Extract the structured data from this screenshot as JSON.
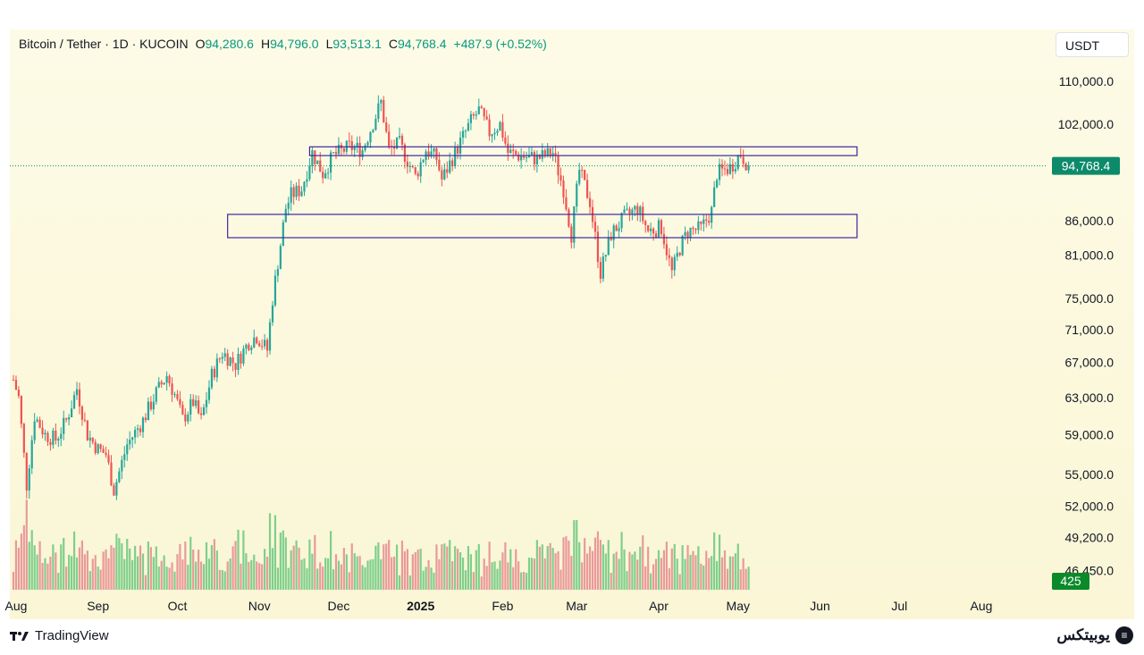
{
  "legend": {
    "symbol": "Bitcoin / Tether · 1D · KUCOIN",
    "o_label": "O",
    "o_value": "94,280.6",
    "h_label": "H",
    "h_value": "94,796.0",
    "l_label": "L",
    "l_value": "93,513.1",
    "c_label": "C",
    "c_value": "94,768.4",
    "change": "+487.9 (+0.52%)"
  },
  "currency_button": "USDT",
  "footer": {
    "tradingview": "TradingView",
    "brand": "یوبیتکس"
  },
  "colors": {
    "up": "#26a69a",
    "down": "#ef5350",
    "volume_up": "#7fcf8b",
    "volume_down": "#e99a9a",
    "zone": "#3c2a9e",
    "price_badge": "#0c8a6a",
    "volume_badge": "#0b8a2a"
  },
  "icons": [
    "tradingview-logo-icon",
    "brand-logo-icon"
  ],
  "chart_data": {
    "type": "candlestick",
    "scale": "log",
    "y_ticks": [
      {
        "value": 110000,
        "label": "110,000.0"
      },
      {
        "value": 102000,
        "label": "102,000.0"
      },
      {
        "value": 86000,
        "label": "86,000.0"
      },
      {
        "value": 81000,
        "label": "81,000.0"
      },
      {
        "value": 75000,
        "label": "75,000.0"
      },
      {
        "value": 71000,
        "label": "71,000.0"
      },
      {
        "value": 67000,
        "label": "67,000.0"
      },
      {
        "value": 63000,
        "label": "63,000.0"
      },
      {
        "value": 59000,
        "label": "59,000.0"
      },
      {
        "value": 55000,
        "label": "55,000.0"
      },
      {
        "value": 52000,
        "label": "52,000.0"
      },
      {
        "value": 49200,
        "label": "49,200.0"
      },
      {
        "value": 46450,
        "label": "46,450.0"
      }
    ],
    "x_ticks": [
      {
        "label": "Aug",
        "bold": false
      },
      {
        "label": "Sep",
        "bold": false
      },
      {
        "label": "Oct",
        "bold": false
      },
      {
        "label": "Nov",
        "bold": false
      },
      {
        "label": "Dec",
        "bold": false
      },
      {
        "label": "2025",
        "bold": true
      },
      {
        "label": "Feb",
        "bold": false
      },
      {
        "label": "Mar",
        "bold": false
      },
      {
        "label": "Apr",
        "bold": false
      },
      {
        "label": "May",
        "bold": false
      },
      {
        "label": "Jun",
        "bold": false
      },
      {
        "label": "Jul",
        "bold": false
      },
      {
        "label": "Aug",
        "bold": false
      }
    ],
    "last_price": {
      "value": 94768.4,
      "label": "94,768.4"
    },
    "volume_badge": "425",
    "zones": [
      {
        "name": "resistance-zone",
        "low": 96500,
        "high": 98000,
        "from": "2024-11-20",
        "to": "2025-06-15"
      },
      {
        "name": "support-zone",
        "low": 83500,
        "high": 87000,
        "from": "2024-10-20",
        "to": "2025-06-15"
      }
    ],
    "price_path": [
      [
        "2024-07-31",
        65000
      ],
      [
        "2024-08-02",
        63000
      ],
      [
        "2024-08-05",
        54000
      ],
      [
        "2024-08-08",
        61000
      ],
      [
        "2024-08-12",
        59000
      ],
      [
        "2024-08-16",
        58500
      ],
      [
        "2024-08-20",
        60500
      ],
      [
        "2024-08-24",
        64000
      ],
      [
        "2024-08-28",
        59000
      ],
      [
        "2024-09-01",
        57500
      ],
      [
        "2024-09-04",
        57000
      ],
      [
        "2024-09-07",
        53500
      ],
      [
        "2024-09-12",
        58000
      ],
      [
        "2024-09-18",
        60500
      ],
      [
        "2024-09-23",
        63500
      ],
      [
        "2024-09-27",
        65500
      ],
      [
        "2024-09-30",
        63300
      ],
      [
        "2024-10-03",
        60600
      ],
      [
        "2024-10-07",
        62500
      ],
      [
        "2024-10-10",
        60500
      ],
      [
        "2024-10-14",
        65500
      ],
      [
        "2024-10-18",
        68200
      ],
      [
        "2024-10-23",
        66800
      ],
      [
        "2024-10-28",
        69500
      ],
      [
        "2024-10-31",
        70200
      ],
      [
        "2024-11-04",
        68500
      ],
      [
        "2024-11-06",
        75000
      ],
      [
        "2024-11-11",
        88000
      ],
      [
        "2024-11-13",
        90000
      ],
      [
        "2024-11-17",
        91000
      ],
      [
        "2024-11-21",
        97000
      ],
      [
        "2024-11-25",
        93500
      ],
      [
        "2024-11-29",
        96500
      ],
      [
        "2024-12-05",
        98000
      ],
      [
        "2024-12-10",
        97500
      ],
      [
        "2024-12-17",
        106000
      ],
      [
        "2024-12-20",
        97500
      ],
      [
        "2024-12-24",
        98500
      ],
      [
        "2024-12-30",
        93000
      ],
      [
        "2025-01-03",
        97500
      ],
      [
        "2025-01-07",
        96000
      ],
      [
        "2025-01-09",
        92500
      ],
      [
        "2025-01-14",
        97000
      ],
      [
        "2025-01-20",
        102500
      ],
      [
        "2025-01-23",
        104500
      ],
      [
        "2025-01-27",
        100500
      ],
      [
        "2025-01-31",
        102000
      ],
      [
        "2025-02-03",
        97000
      ],
      [
        "2025-02-07",
        96500
      ],
      [
        "2025-02-14",
        96000
      ],
      [
        "2025-02-20",
        97000
      ],
      [
        "2025-02-24",
        91000
      ],
      [
        "2025-02-27",
        84000
      ],
      [
        "2025-03-02",
        94000
      ],
      [
        "2025-03-06",
        89000
      ],
      [
        "2025-03-10",
        78500
      ],
      [
        "2025-03-14",
        84000
      ],
      [
        "2025-03-19",
        86500
      ],
      [
        "2025-03-24",
        88000
      ],
      [
        "2025-03-28",
        84500
      ],
      [
        "2025-04-02",
        85000
      ],
      [
        "2025-04-06",
        78500
      ],
      [
        "2025-04-09",
        82000
      ],
      [
        "2025-04-12",
        84500
      ],
      [
        "2025-04-17",
        84800
      ],
      [
        "2025-04-21",
        87500
      ],
      [
        "2025-04-23",
        93500
      ],
      [
        "2025-04-28",
        94500
      ],
      [
        "2025-05-02",
        96800
      ],
      [
        "2025-05-05",
        94768
      ]
    ]
  }
}
